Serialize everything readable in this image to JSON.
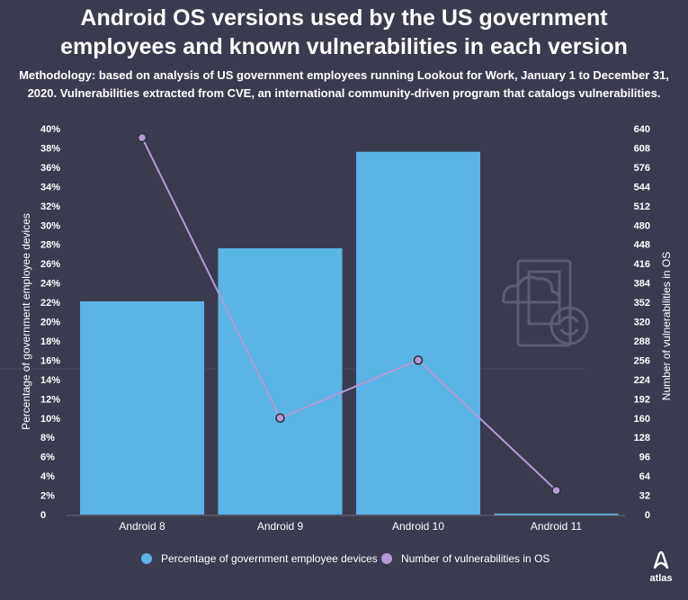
{
  "title_line1": "Android OS versions used by the US government",
  "title_line2": "employees and known vulnerabilities in each version",
  "subtitle_line1": "Methodology: based on analysis of US government employees running Lookout for Work, January 1 to December 31,",
  "subtitle_line2": "2020. Vulnerabilities extracted from CVE, an international community-driven program that catalogs vulnerabilities.",
  "logo_text": "atlas",
  "colors": {
    "background": "#3b3b4f",
    "bar": "#5ab4e6",
    "line": "#b49ad6",
    "point_fill": "#b49ad6",
    "point_stroke": "#2c2c3a",
    "axis": "#6a6a80"
  },
  "chart_data": {
    "type": "bar",
    "categories": [
      "Android 8",
      "Android 9",
      "Android 10",
      "Android 11"
    ],
    "ylabel": "Percentage of government employee devices",
    "y2label": "Number of vulnerabilities in OS",
    "ylim": [
      0,
      40
    ],
    "y2lim": [
      0,
      640
    ],
    "yticks": [
      "0",
      "2%",
      "4%",
      "6%",
      "8%",
      "10%",
      "12%",
      "14%",
      "16%",
      "18%",
      "20%",
      "22%",
      "24%",
      "26%",
      "28%",
      "30%",
      "32%",
      "34%",
      "36%",
      "38%",
      "40%"
    ],
    "y2ticks": [
      "0",
      "32",
      "64",
      "96",
      "128",
      "160",
      "192",
      "224",
      "256",
      "288",
      "320",
      "352",
      "384",
      "416",
      "448",
      "480",
      "512",
      "544",
      "576",
      "608",
      "640"
    ],
    "series": [
      {
        "name": "Percentage of government employee devices",
        "type": "bar",
        "axis": "left",
        "values": [
          22.1,
          27.6,
          37.6,
          0.1
        ]
      },
      {
        "name": "Number of vulnerabilities in OS",
        "type": "line",
        "axis": "right",
        "values": [
          625,
          160,
          256,
          40
        ]
      }
    ],
    "legend": "bottom"
  }
}
